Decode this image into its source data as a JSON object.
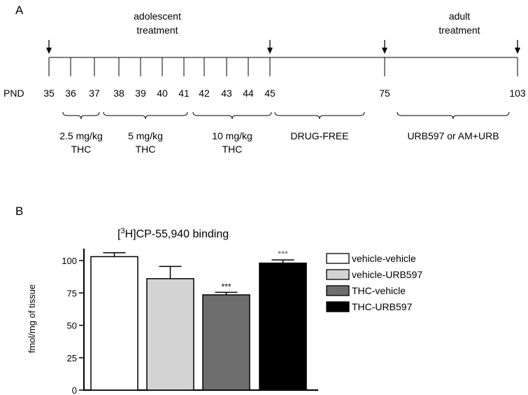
{
  "panel_a": {
    "label": "A",
    "pnd_label": "PND",
    "adolescent_line1": "adolescent",
    "adolescent_line2": "treatment",
    "adult_line1": "adult",
    "adult_line2": "treatment",
    "days": [
      "35",
      "36",
      "37",
      "38",
      "39",
      "40",
      "41",
      "42",
      "43",
      "44",
      "45",
      "75",
      "103"
    ],
    "arrow_days": [
      "35",
      "45",
      "75",
      "103"
    ],
    "phases": [
      {
        "line1": "2.5 mg/kg",
        "line2": "THC"
      },
      {
        "line1": "5 mg/kg",
        "line2": "THC"
      },
      {
        "line1": "10 mg/kg",
        "line2": "THC"
      },
      {
        "line1": "DRUG-FREE",
        "line2": ""
      },
      {
        "line1": "URB597 or AM+URB",
        "line2": ""
      }
    ]
  },
  "panel_b": {
    "label": "B",
    "title_prefix": "[",
    "title_sup": "3",
    "title_rest": "H]CP-55,940 binding",
    "ylabel": "fmol/mg of tissue",
    "legend": [
      "vehicle-vehicle",
      "vehicle-URB597",
      "THC-vehicle",
      "THC-URB597"
    ]
  },
  "chart_data": {
    "type": "bar",
    "categories": [
      "vehicle-vehicle",
      "vehicle-URB597",
      "THC-vehicle",
      "THC-URB597"
    ],
    "values": [
      103,
      86,
      73.5,
      98
    ],
    "errors": [
      3,
      9.5,
      2,
      2.5
    ],
    "colors": [
      "#ffffff",
      "#d3d3d3",
      "#6e6e6e",
      "#000000"
    ],
    "annotations": [
      "",
      "",
      "***",
      "°°°"
    ],
    "ylim": [
      0,
      100
    ],
    "yticks": [
      "0",
      "25",
      "50",
      "75",
      "100"
    ],
    "ytick_values": [
      0,
      25,
      50,
      75,
      100
    ],
    "ylabel": "fmol/mg of tissue",
    "legend_position": "right"
  }
}
